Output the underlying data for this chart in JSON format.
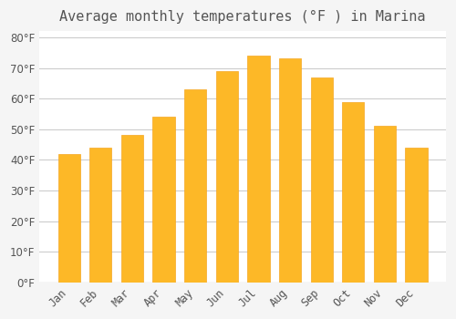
{
  "title": "Average monthly temperatures (°F ) in Marina",
  "months": [
    "Jan",
    "Feb",
    "Mar",
    "Apr",
    "May",
    "Jun",
    "Jul",
    "Aug",
    "Sep",
    "Oct",
    "Nov",
    "Dec"
  ],
  "values": [
    42,
    44,
    48,
    54,
    63,
    69,
    74,
    73,
    67,
    59,
    51,
    44
  ],
  "bar_color": "#FDB827",
  "bar_edge_color": "#F5A623",
  "background_color": "#F5F5F5",
  "plot_bg_color": "#FFFFFF",
  "grid_color": "#CCCCCC",
  "text_color": "#555555",
  "ylim": [
    0,
    82
  ],
  "yticks": [
    0,
    10,
    20,
    30,
    40,
    50,
    60,
    70,
    80
  ],
  "title_fontsize": 11,
  "tick_fontsize": 8.5,
  "ylabel_suffix": "°F"
}
